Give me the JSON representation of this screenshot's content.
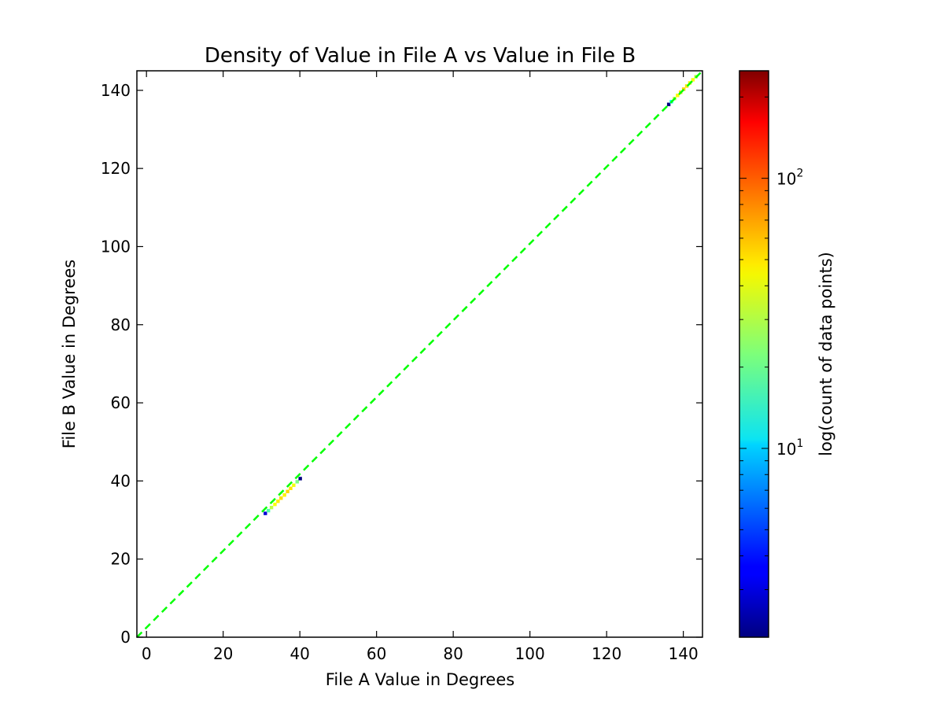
{
  "chart_data": {
    "type": "heatmap",
    "title": "Density of Value in File A vs Value in File B",
    "xlabel": "File A Value in Degrees",
    "ylabel": "File B Value in Degrees",
    "xlim": [
      -2.5,
      145
    ],
    "ylim": [
      0,
      145
    ],
    "xticks": [
      0,
      20,
      40,
      60,
      80,
      100,
      120,
      140
    ],
    "yticks": [
      0,
      20,
      40,
      60,
      80,
      100,
      120,
      140
    ],
    "grid": false,
    "reference_line": {
      "style": "dashed",
      "color": "#00ff00",
      "from": [
        -2.5,
        -2.5
      ],
      "to": [
        145,
        145
      ]
    },
    "colorbar": {
      "label": "log(count of data points)",
      "scale": "log",
      "range": [
        2,
        250
      ],
      "tick_labels": [
        {
          "value": 10,
          "base": "10",
          "exp": "1"
        },
        {
          "value": 100,
          "base": "10",
          "exp": "2"
        }
      ],
      "colormap": "jet"
    },
    "cells": [
      {
        "x": 31.0,
        "y": 31.7,
        "count": 3
      },
      {
        "x": 31.8,
        "y": 32.4,
        "count": 18
      },
      {
        "x": 32.6,
        "y": 33.2,
        "count": 30
      },
      {
        "x": 33.5,
        "y": 34.0,
        "count": 40
      },
      {
        "x": 34.3,
        "y": 34.8,
        "count": 45
      },
      {
        "x": 35.1,
        "y": 35.6,
        "count": 48
      },
      {
        "x": 36.0,
        "y": 36.4,
        "count": 44
      },
      {
        "x": 36.8,
        "y": 37.3,
        "count": 50
      },
      {
        "x": 37.6,
        "y": 38.1,
        "count": 46
      },
      {
        "x": 38.4,
        "y": 38.9,
        "count": 38
      },
      {
        "x": 39.3,
        "y": 39.8,
        "count": 22
      },
      {
        "x": 40.1,
        "y": 40.6,
        "count": 2
      },
      {
        "x": 136.2,
        "y": 136.4,
        "count": 2
      },
      {
        "x": 136.9,
        "y": 137.1,
        "count": 12
      },
      {
        "x": 137.7,
        "y": 137.9,
        "count": 30
      },
      {
        "x": 138.5,
        "y": 138.7,
        "count": 42
      },
      {
        "x": 139.3,
        "y": 139.5,
        "count": 48
      },
      {
        "x": 140.1,
        "y": 140.3,
        "count": 50
      },
      {
        "x": 140.9,
        "y": 141.1,
        "count": 46
      },
      {
        "x": 141.7,
        "y": 141.9,
        "count": 44
      },
      {
        "x": 142.5,
        "y": 142.7,
        "count": 40
      },
      {
        "x": 143.3,
        "y": 143.5,
        "count": 30
      }
    ]
  }
}
